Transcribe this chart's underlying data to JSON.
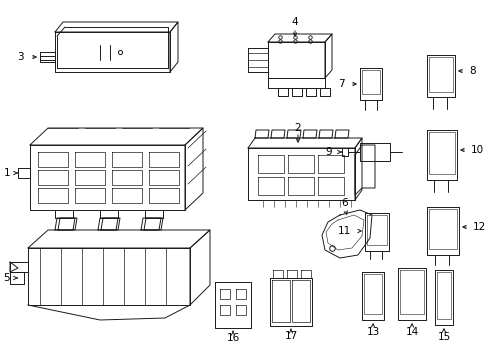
{
  "background_color": "#ffffff",
  "line_color": "#1a1a1a",
  "text_color": "#000000",
  "lw": 0.7,
  "fontsize": 7.5
}
